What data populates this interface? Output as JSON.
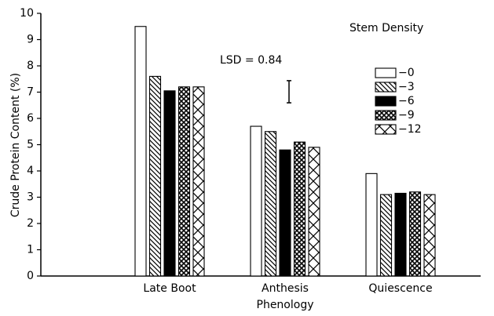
{
  "chart_data": {
    "type": "bar",
    "x_label": "Phenology",
    "y_label": "Crude Protein Content (%)",
    "categories": [
      "Late Boot",
      "Anthesis",
      "Quiescence"
    ],
    "legend_title": "Stem Density",
    "series": [
      {
        "name": "−0",
        "pattern": "none",
        "values": [
          9.5,
          5.7,
          3.9
        ]
      },
      {
        "name": "−3",
        "pattern": "hatch",
        "values": [
          7.6,
          5.5,
          3.1
        ]
      },
      {
        "name": "−6",
        "pattern": "solid",
        "values": [
          7.05,
          4.8,
          3.15
        ]
      },
      {
        "name": "−9",
        "pattern": "cross",
        "values": [
          7.2,
          5.1,
          3.2
        ]
      },
      {
        "name": "−12",
        "pattern": "x",
        "values": [
          7.2,
          4.9,
          3.1
        ]
      }
    ],
    "annotation": "LSD = 0.84",
    "lsd": 0.84,
    "ylim": [
      0,
      10
    ],
    "yticks": [
      0,
      1,
      2,
      3,
      4,
      5,
      6,
      7,
      8,
      9,
      10
    ],
    "legend": "upper right"
  }
}
